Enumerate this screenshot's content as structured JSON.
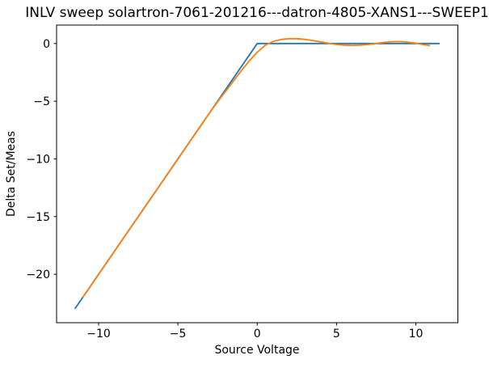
{
  "figure": {
    "background_color": "#ffffff",
    "foreground_color": "#000000"
  },
  "chart_data": {
    "type": "line",
    "title": "INLV sweep solartron-7061-201216---datron-4805-XANS1---SWEEP1",
    "xlabel": "Source Voltage",
    "ylabel": "Delta Set/Meas",
    "xlim": [
      -12.65,
      12.65
    ],
    "ylim": [
      -24.2,
      1.6
    ],
    "xticks": [
      -10,
      -5,
      0,
      5,
      10
    ],
    "yticks": [
      0,
      -5,
      -10,
      -15,
      -20
    ],
    "grid": false,
    "legend": false,
    "axes_color": "#000000",
    "series": [
      {
        "name": "delta-set-meas",
        "color": "#1f77b4",
        "x": [
          -11.5,
          0,
          11.5
        ],
        "y": [
          -23,
          0,
          0
        ]
      },
      {
        "name": "fit-curve",
        "color": "#ff7f0e",
        "x": [
          -11,
          -10,
          -9,
          -8,
          -7,
          -6,
          -5,
          -4,
          -3,
          -2.5,
          -2,
          -1.5,
          -1,
          -0.5,
          0,
          0.5,
          1,
          1.5,
          2,
          2.5,
          3,
          3.5,
          4,
          4.5,
          5,
          5.5,
          6,
          6.5,
          7,
          7.5,
          8,
          8.5,
          9,
          9.5,
          10,
          10.5,
          10.9
        ],
        "y": [
          -22,
          -20,
          -18,
          -16,
          -14,
          -12,
          -10,
          -8,
          -6.0,
          -5.05,
          -4.15,
          -3.25,
          -2.35,
          -1.5,
          -0.75,
          -0.15,
          0.18,
          0.35,
          0.42,
          0.42,
          0.36,
          0.26,
          0.14,
          0.02,
          -0.08,
          -0.14,
          -0.16,
          -0.14,
          -0.08,
          0.0,
          0.1,
          0.16,
          0.17,
          0.12,
          0.02,
          -0.1,
          -0.18
        ]
      }
    ]
  }
}
